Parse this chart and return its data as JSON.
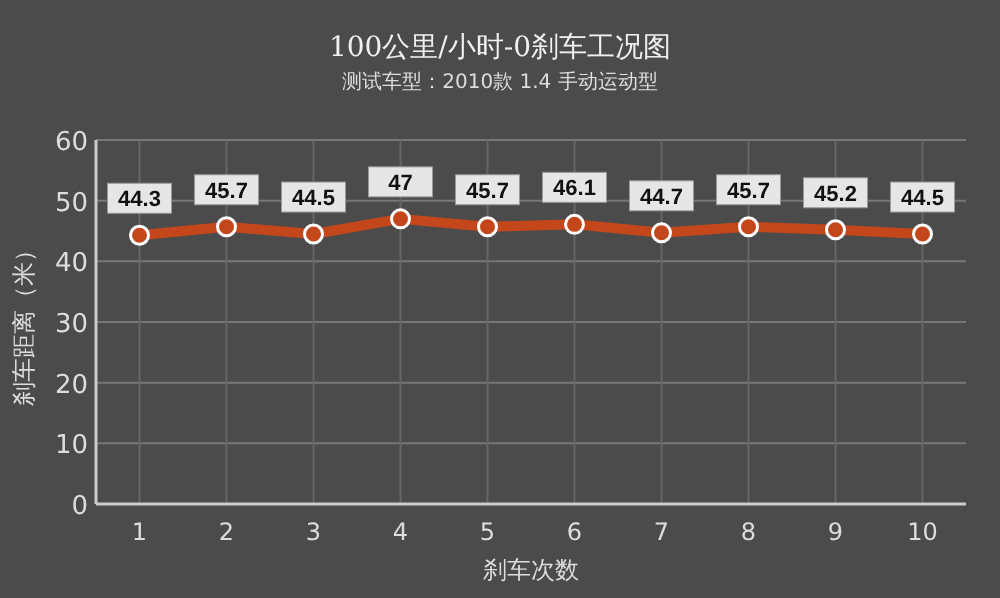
{
  "chart_data": {
    "type": "line",
    "title": "100公里/小时-0刹车工况图",
    "subtitle": "测试车型：2010款 1.4 手动运动型",
    "xlabel": "刹车次数",
    "ylabel": "刹车距离（米）",
    "categories": [
      "1",
      "2",
      "3",
      "4",
      "5",
      "6",
      "7",
      "8",
      "9",
      "10"
    ],
    "series": [
      {
        "color": "#c4471c",
        "values": [
          44.3,
          45.7,
          44.5,
          47,
          45.7,
          46.1,
          44.7,
          45.7,
          45.2,
          44.5
        ]
      }
    ],
    "ylim": [
      0,
      60
    ],
    "yticks": [
      0,
      10,
      20,
      30,
      40,
      50,
      60
    ],
    "grid": true,
    "marker": "circle",
    "line_style": "solid",
    "data_labels": true
  }
}
